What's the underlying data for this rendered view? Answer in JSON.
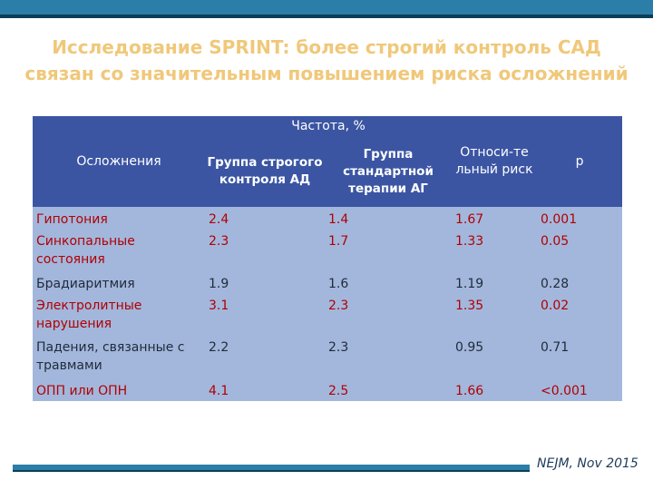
{
  "title": {
    "line1": "Исследование SPRINT: более строгий контроль САД",
    "line2": "связан со значительным повышением риска осложнений"
  },
  "table": {
    "headers": {
      "complications": "Осложнения",
      "frequency": "Частота, %",
      "strict_group": "Группа строгого контроля АД",
      "standard_group": "Группа стандартной терапии АГ",
      "relative_risk": "Относи-те льный риск",
      "p": "р"
    },
    "rows": [
      {
        "name": "Гипотония",
        "strict": "2.4",
        "standard": "1.4",
        "rr": "1.67",
        "p": "0.001",
        "highlight": true
      },
      {
        "name": "Синкопальные состояния",
        "strict": "2.3",
        "standard": "1.7",
        "rr": "1.33",
        "p": "0.05",
        "highlight": true
      },
      {
        "name": "Брадиаритмия",
        "strict": "1.9",
        "standard": "1.6",
        "rr": "1.19",
        "p": "0.28",
        "highlight": false
      },
      {
        "name": "Электролитные нарушения",
        "strict": "3.1",
        "standard": "2.3",
        "rr": "1.35",
        "p": "0.02",
        "highlight": true
      },
      {
        "name": "Падения, связанные с травмами",
        "strict": "2.2",
        "standard": "2.3",
        "rr": "0.95",
        "p": "0.71",
        "highlight": false
      },
      {
        "name": "ОПП или ОПН",
        "strict": "4.1",
        "standard": "2.5",
        "rr": "1.66",
        "p": "<0.001",
        "highlight": true
      }
    ]
  },
  "source": "NEJM, Nov 2015",
  "colors": {
    "title": "#f0c87a",
    "header_bg": "#3b55a3",
    "row_bg": "#a3b7dd",
    "highlight_text": "#b00000",
    "accent_bar": "#2b7ea8"
  }
}
